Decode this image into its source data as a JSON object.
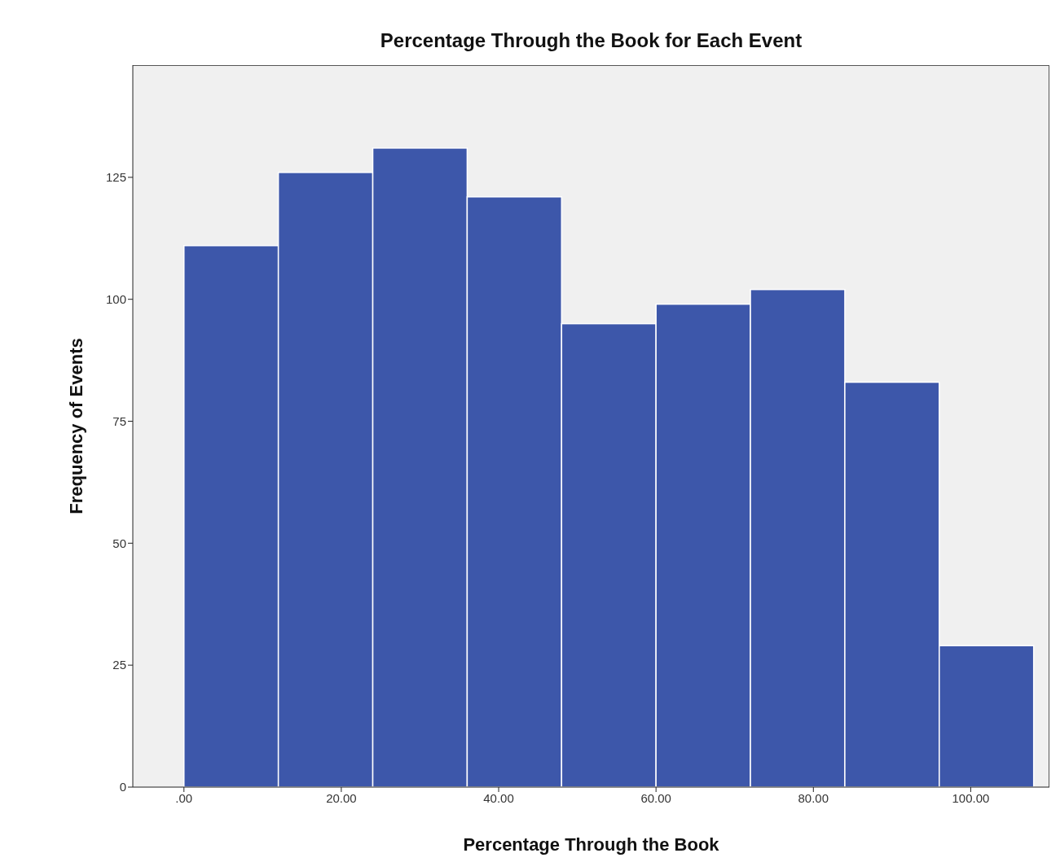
{
  "chart_data": {
    "type": "histogram",
    "title": "Percentage Through the Book for Each Event",
    "xlabel": "Percentage Through the Book",
    "ylabel": "Frequency of Events",
    "bins": [
      0,
      12,
      24,
      36,
      48,
      60,
      72,
      84,
      96,
      108
    ],
    "values": [
      111,
      126,
      131,
      121,
      95,
      99,
      102,
      83,
      29
    ],
    "color": "#3d57aa",
    "xlim": [
      -6.5,
      110
    ],
    "xticks": [
      {
        "value": 0,
        "label": ".00"
      },
      {
        "value": 20,
        "label": "20.00"
      },
      {
        "value": 40,
        "label": "40.00"
      },
      {
        "value": 60,
        "label": "60.00"
      },
      {
        "value": 80,
        "label": "80.00"
      },
      {
        "value": 100,
        "label": "100.00"
      }
    ],
    "ylim": [
      0,
      148
    ],
    "yticks": [
      0,
      25,
      50,
      75,
      100,
      125
    ],
    "grid": false
  }
}
